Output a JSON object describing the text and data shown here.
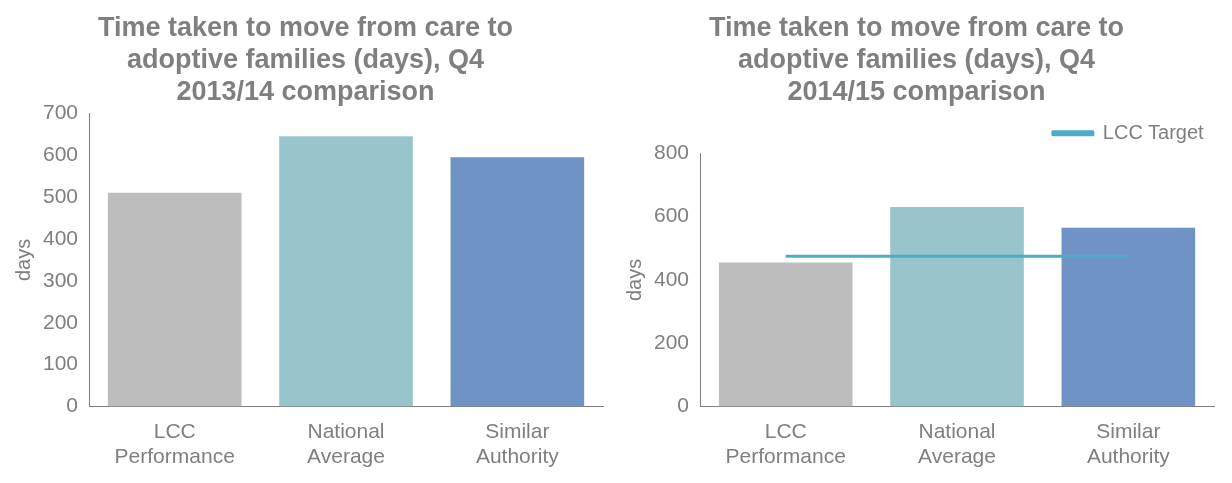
{
  "chart_data": [
    {
      "type": "bar",
      "title": "Time taken to move from care to adoptive families (days), Q4 2013/14 comparison",
      "ylabel": "days",
      "categories": [
        "LCC Performance",
        "National Average",
        "Similar Authority"
      ],
      "series": [
        {
          "values": [
            510,
            645,
            595
          ],
          "colors": [
            "#bdbdbd",
            "#98c4cc",
            "#6f93c4"
          ]
        }
      ],
      "ylim": [
        0,
        700
      ],
      "yticks": [
        0,
        100,
        200,
        300,
        400,
        500,
        600,
        700
      ],
      "grid": false,
      "legend": false
    },
    {
      "type": "bar",
      "title": "Time taken to move from care to adoptive families (days), Q4 2014/15 comparison",
      "ylabel": "days",
      "categories": [
        "LCC Performance",
        "National Average",
        "Similar Authority"
      ],
      "series": [
        {
          "values": [
            455,
            630,
            565
          ],
          "colors": [
            "#bdbdbd",
            "#98c4cc",
            "#6f93c4"
          ]
        },
        {
          "type": "line",
          "name": "LCC Target",
          "color": "#4bacc6",
          "values": [
            475,
            475,
            475
          ]
        }
      ],
      "ylim": [
        0,
        800
      ],
      "yticks": [
        0,
        200,
        400,
        600,
        800
      ],
      "grid": false,
      "legend": "top right"
    }
  ]
}
